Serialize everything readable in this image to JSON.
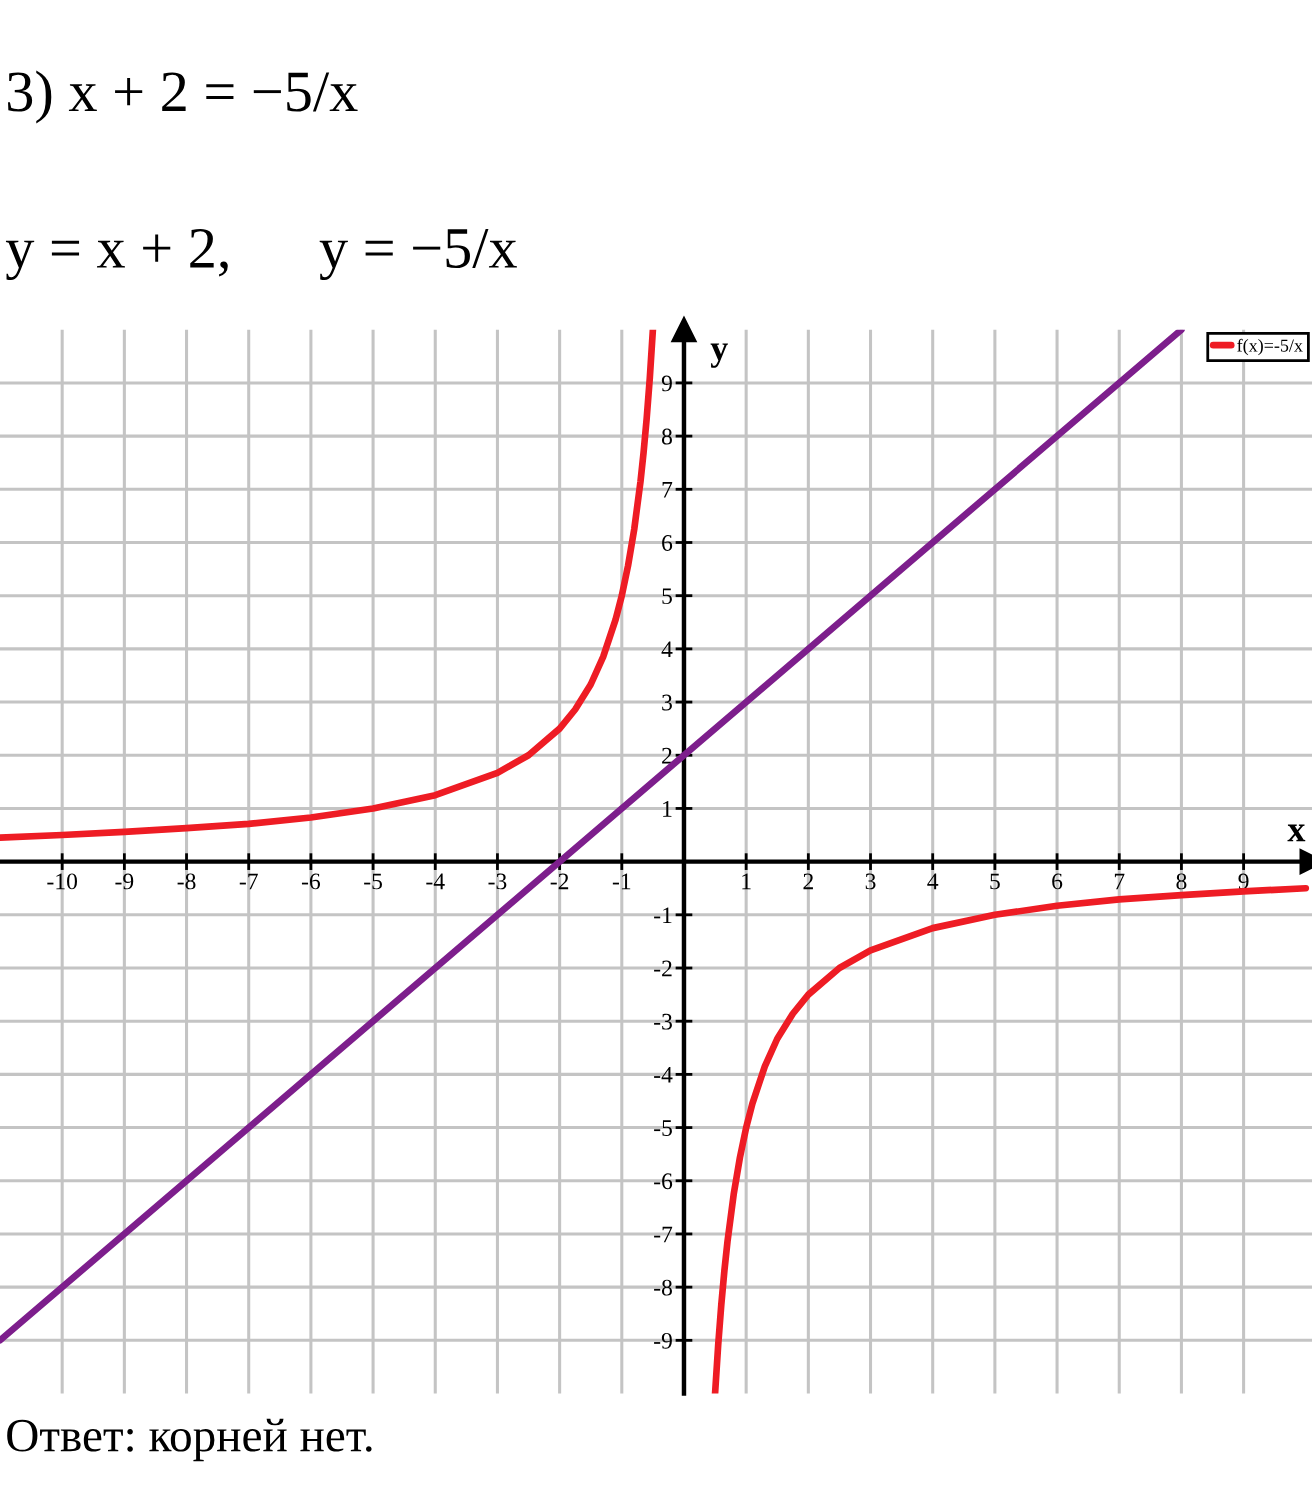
{
  "chart_data": {
    "type": "line",
    "title": "3) x + 2 = −5/x",
    "subtitle": "y = x + 2,      y = −5/x",
    "xlabel": "x",
    "ylabel": "y",
    "annotations": [
      "Ответ: корней нет."
    ],
    "series": [
      {
        "color": "#7d1e8c",
        "x": [
          -11,
          8
        ],
        "values": [
          -9,
          10
        ]
      },
      {
        "name": "f(x)=-5/x",
        "color": "#ee1c24",
        "x": [
          -11,
          -10,
          -9,
          -8,
          -7,
          -6,
          -5,
          -4,
          -3,
          -2.5,
          -2,
          -1.75,
          -1.5,
          -1.3,
          -1.1,
          -1,
          -0.9,
          -0.8,
          -0.7,
          -0.65,
          -0.6,
          -0.55,
          -0.5,
          0,
          0.5,
          0.55,
          0.6,
          0.65,
          0.7,
          0.8,
          0.9,
          1,
          1.1,
          1.3,
          1.5,
          1.75,
          2,
          2.5,
          3,
          4,
          5,
          6,
          7,
          8,
          9,
          10
        ],
        "values": [
          0.45,
          0.5,
          0.56,
          0.63,
          0.71,
          0.83,
          1,
          1.25,
          1.67,
          2,
          2.5,
          2.86,
          3.33,
          3.85,
          4.55,
          5,
          5.56,
          6.25,
          7.14,
          7.69,
          8.33,
          9.09,
          10,
          null,
          -10,
          -9.09,
          -8.33,
          -7.69,
          -7.14,
          -6.25,
          -5.56,
          -5,
          -4.55,
          -3.85,
          -3.33,
          -2.86,
          -2.5,
          -2,
          -1.67,
          -1.25,
          -1,
          -0.83,
          -0.71,
          -0.63,
          -0.56,
          -0.5
        ]
      }
    ],
    "xlim": [
      -11,
      10.1
    ],
    "ylim": [
      -10,
      10
    ],
    "xticks": [
      -10,
      -9,
      -8,
      -7,
      -6,
      -5,
      -4,
      -3,
      -2,
      -1,
      1,
      2,
      3,
      4,
      5,
      6,
      7,
      8,
      9
    ],
    "yticks": [
      -9,
      -8,
      -7,
      -6,
      -5,
      -4,
      -3,
      -2,
      -1,
      1,
      2,
      3,
      4,
      5,
      6,
      7,
      8,
      9
    ],
    "grid": true,
    "legend": "top right"
  }
}
